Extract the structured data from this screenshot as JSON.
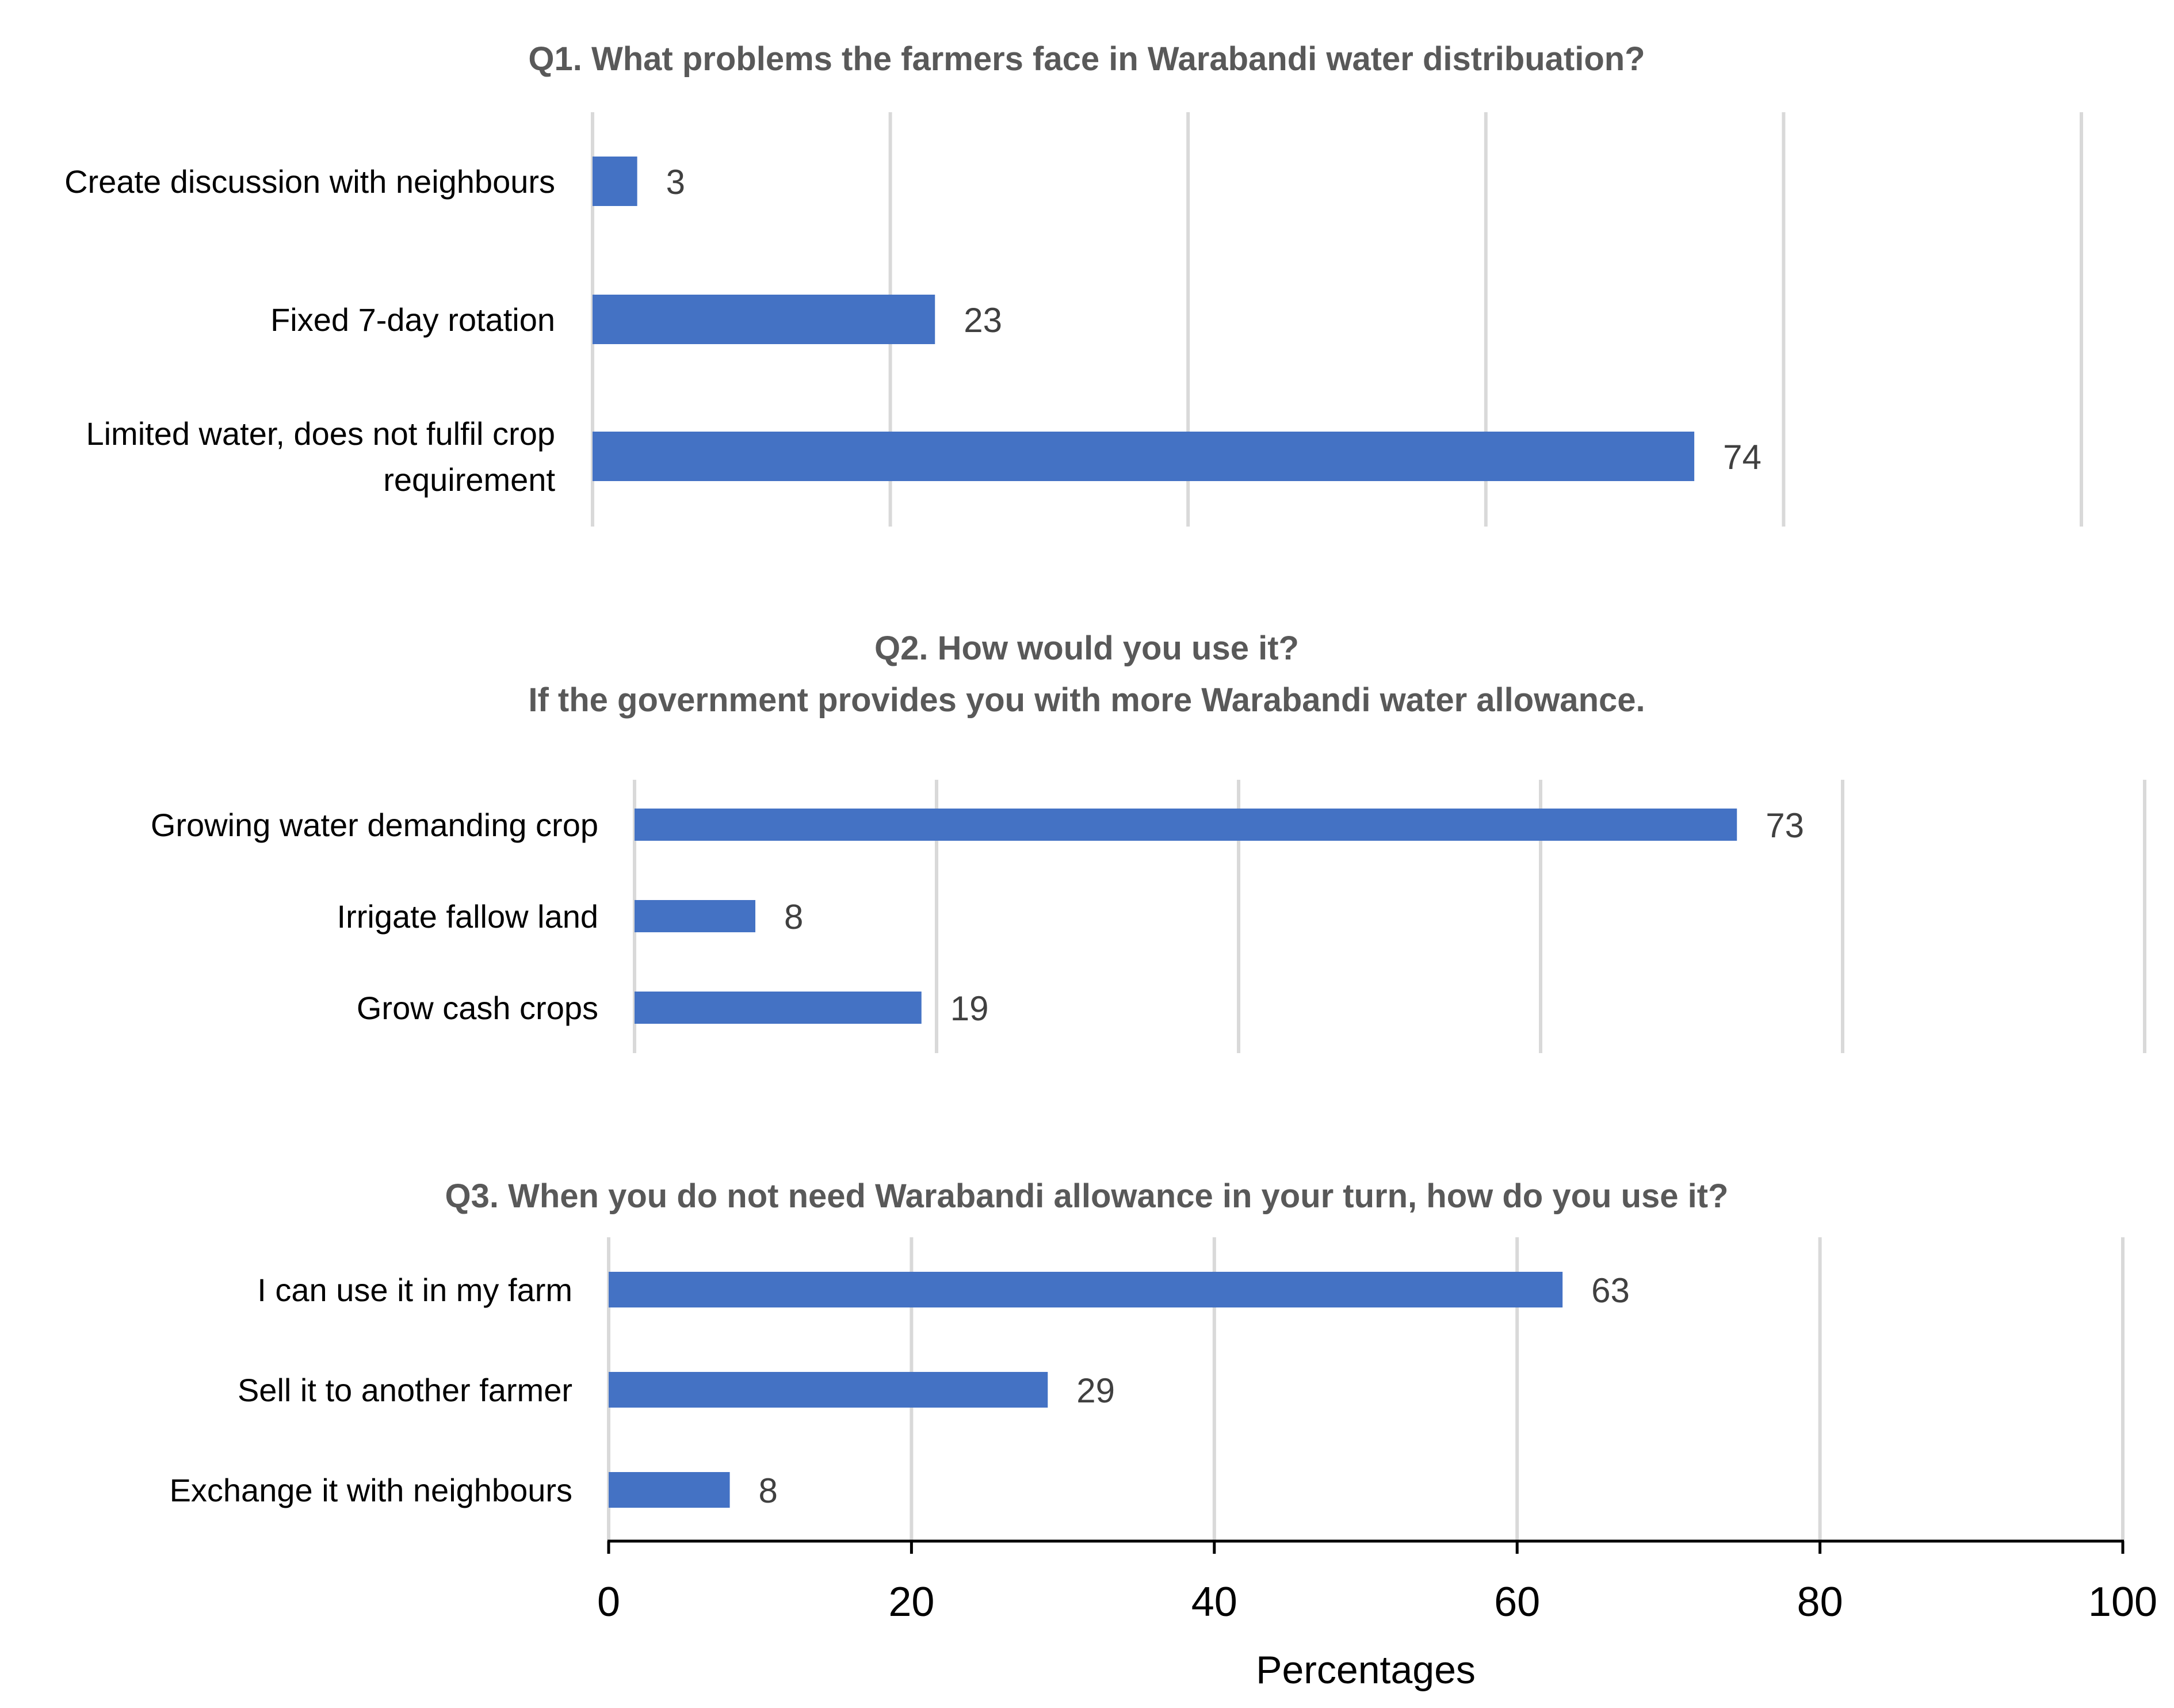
{
  "chart_data": [
    {
      "type": "bar",
      "orientation": "horizontal",
      "title": [
        "Q1. What problems the farmers face in Warabandi water distribuation?"
      ],
      "categories": [
        [
          "Create discussion with neighbours"
        ],
        [
          "Fixed 7-day rotation"
        ],
        [
          "Limited water, does not fulfil crop",
          "requirement"
        ]
      ],
      "values": [
        3,
        23,
        74
      ],
      "xlim": [
        0,
        100
      ],
      "grid": true,
      "show_tick_labels": false,
      "xlabel": ""
    },
    {
      "type": "bar",
      "orientation": "horizontal",
      "title": [
        "Q2. How would you use  it?",
        "If the government provides you with more Warabandi water allowance."
      ],
      "categories": [
        [
          "Growing water demanding crop"
        ],
        [
          "Irrigate fallow land"
        ],
        [
          "Grow cash crops"
        ]
      ],
      "values": [
        73,
        8,
        19
      ],
      "xlim": [
        0,
        100
      ],
      "grid": true,
      "show_tick_labels": false,
      "xlabel": ""
    },
    {
      "type": "bar",
      "orientation": "horizontal",
      "title": [
        "Q3. When you do not need Warabandi allowance in your turn, how do you use it?"
      ],
      "categories": [
        [
          "I can use it in my farm"
        ],
        [
          "Sell it to another farmer"
        ],
        [
          "Exchange it with neighbours"
        ]
      ],
      "values": [
        63,
        29,
        8
      ],
      "xlim": [
        0,
        100
      ],
      "grid": true,
      "show_tick_labels": true,
      "ticks": [
        "0",
        "20",
        "40",
        "60",
        "80",
        "100"
      ],
      "xlabel": "Percentages"
    }
  ],
  "colors": {
    "bar": "#4472c4",
    "grid": "#d9d9d9",
    "title": "#595959",
    "data_label": "#404040"
  }
}
